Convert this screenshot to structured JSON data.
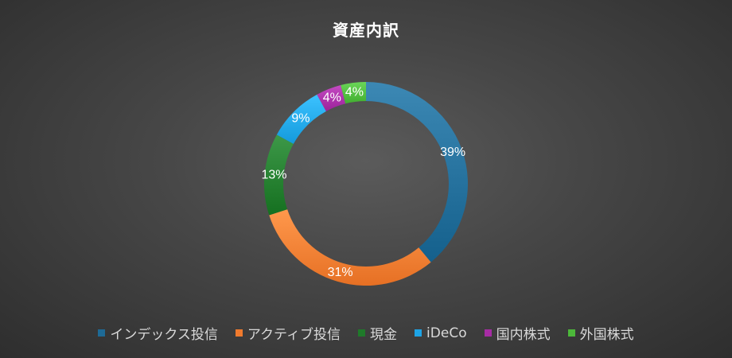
{
  "chart_data": {
    "type": "pie",
    "subtype": "donut",
    "title": "資産内訳",
    "legend_position": "bottom",
    "categories": [
      "インデックス投信",
      "アクティブ投信",
      "現金",
      "iDeCo",
      "国内株式",
      "外国株式"
    ],
    "values": [
      39,
      31,
      13,
      9,
      4,
      4
    ],
    "data_labels": [
      "39%",
      "31%",
      "13%",
      "9%",
      "4%",
      "4%"
    ],
    "colors": [
      "#1e6a96",
      "#f07a2e",
      "#1f7a2a",
      "#1ea4e6",
      "#a62ca4",
      "#4cb83a"
    ]
  }
}
